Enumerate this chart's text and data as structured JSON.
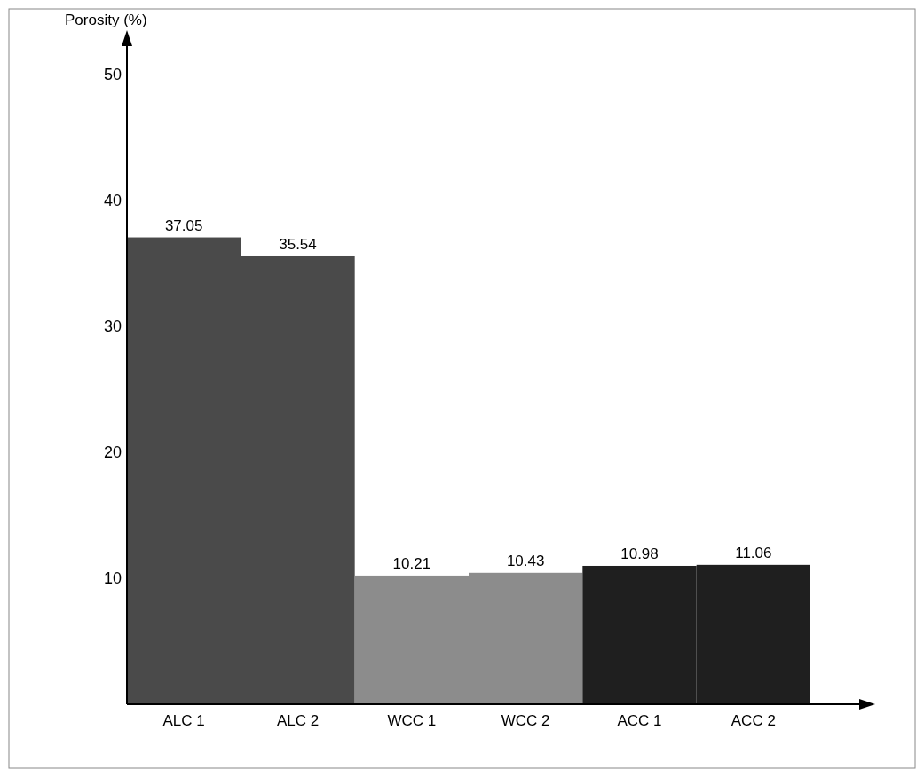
{
  "chart_data": {
    "type": "bar",
    "ylabel": "Porosity (%)",
    "categories": [
      "ALC 1",
      "ALC 2",
      "WCC 1",
      "WCC 2",
      "ACC 1",
      "ACC 2"
    ],
    "values": [
      37.05,
      35.54,
      10.21,
      10.43,
      10.98,
      11.06
    ],
    "colors": [
      "#4a4a4a",
      "#4a4a4a",
      "#8c8c8c",
      "#8c8c8c",
      "#1f1f1f",
      "#1f1f1f"
    ],
    "ylim": [
      0,
      52.5
    ],
    "yticks": [
      10,
      20,
      30,
      40,
      50
    ],
    "data_labels": true,
    "grid": false
  }
}
